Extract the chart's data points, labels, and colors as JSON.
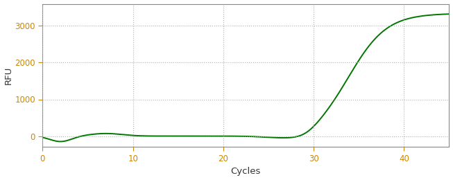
{
  "title": "",
  "xlabel": "Cycles",
  "ylabel": "RFU",
  "xlim": [
    0,
    45
  ],
  "ylim": [
    -300,
    3600
  ],
  "xticks": [
    0,
    10,
    20,
    30,
    40
  ],
  "yticks": [
    0,
    1000,
    2000,
    3000
  ],
  "line_color": "#007700",
  "line_width": 1.4,
  "background_color": "#ffffff",
  "grid_color": "#b0b0b0",
  "label_color": "#cc8800",
  "axes_color": "#888888",
  "sigmoid_L": 3340,
  "sigmoid_k": 0.48,
  "sigmoid_x0": 34.0
}
